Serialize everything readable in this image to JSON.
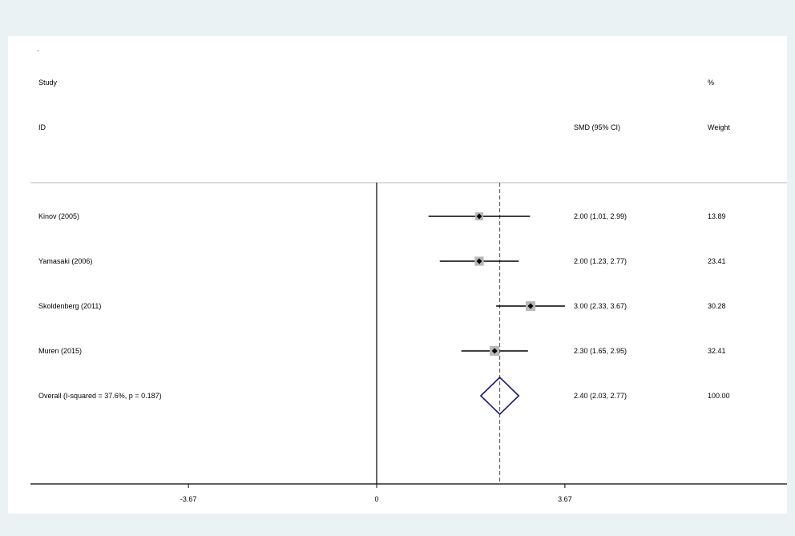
{
  "chart_data": {
    "type": "forest",
    "dot_label": ".",
    "header": {
      "study_line1": "Study",
      "study_line2": "ID",
      "ci_label": "SMD (95% CI)",
      "weight_line1": "%",
      "weight_line2": "Weight"
    },
    "studies": [
      {
        "name": "Kinov (2005)",
        "estimate": 2.0,
        "lower": 1.01,
        "upper": 2.99,
        "ci_text": "2.00 (1.01, 2.99)",
        "weight": 13.89,
        "weight_text": "13.89"
      },
      {
        "name": "Yamasaki (2006)",
        "estimate": 2.0,
        "lower": 1.23,
        "upper": 2.77,
        "ci_text": "2.00 (1.23, 2.77)",
        "weight": 23.41,
        "weight_text": "23.41"
      },
      {
        "name": "Skoldenberg (2011)",
        "estimate": 3.0,
        "lower": 2.33,
        "upper": 3.67,
        "ci_text": "3.00 (2.33, 3.67)",
        "weight": 30.28,
        "weight_text": "30.28"
      },
      {
        "name": "Muren (2015)",
        "estimate": 2.3,
        "lower": 1.65,
        "upper": 2.95,
        "ci_text": "2.30 (1.65, 2.95)",
        "weight": 32.41,
        "weight_text": "32.41"
      }
    ],
    "overall": {
      "label": "Overall  (I-squared = 37.6%, p = 0.187)",
      "estimate": 2.4,
      "lower": 2.03,
      "upper": 2.77,
      "ci_text": "2.40 (2.03, 2.77)",
      "weight_text": "100.00"
    },
    "xaxis": {
      "ticks": [
        -3.67,
        0,
        3.67
      ],
      "tick_labels": [
        "-3.67",
        "0",
        "3.67"
      ],
      "range": [
        -7.25,
        8.05
      ]
    },
    "colors": {
      "ci_line": "#000000",
      "weight_box": "#b8b8b8",
      "diamond": "#1a1a6e",
      "overall_line": "#9b2d3a"
    }
  }
}
